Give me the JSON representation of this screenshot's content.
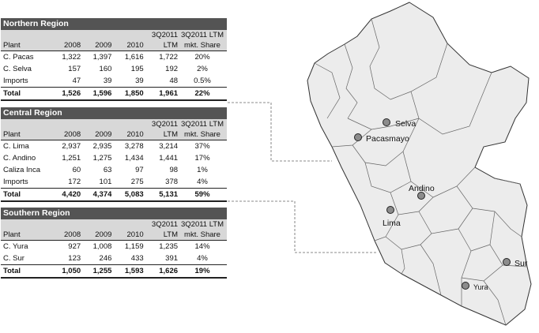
{
  "regions": [
    {
      "title": "Northern Region",
      "header_top": [
        "",
        "",
        "",
        "",
        "3Q2011",
        "3Q2011 LTM"
      ],
      "header": [
        "Plant",
        "2008",
        "2009",
        "2010",
        "LTM",
        "mkt. Share"
      ],
      "rows": [
        [
          "C. Pacas",
          "1,322",
          "1,397",
          "1,616",
          "1,722",
          "20%"
        ],
        [
          "C. Selva",
          "157",
          "160",
          "195",
          "192",
          "2%"
        ],
        [
          "Imports",
          "47",
          "39",
          "39",
          "48",
          "0.5%"
        ]
      ],
      "total": [
        "Total",
        "1,526",
        "1,596",
        "1,850",
        "1,961",
        "22%"
      ]
    },
    {
      "title": "Central Region",
      "header_top": [
        "",
        "",
        "",
        "",
        "3Q2011",
        "3Q2011 LTM"
      ],
      "header": [
        "Plant",
        "2008",
        "2009",
        "2010",
        "LTM",
        "mkt. Share"
      ],
      "rows": [
        [
          "C. Lima",
          "2,937",
          "2,935",
          "3,278",
          "3,214",
          "37%"
        ],
        [
          "C. Andino",
          "1,251",
          "1,275",
          "1,434",
          "1,441",
          "17%"
        ],
        [
          "Caliza Inca",
          "60",
          "63",
          "97",
          "98",
          "1%"
        ],
        [
          "Imports",
          "172",
          "101",
          "275",
          "378",
          "4%"
        ]
      ],
      "total": [
        "Total",
        "4,420",
        "4,374",
        "5,083",
        "5,131",
        "59%"
      ]
    },
    {
      "title": "Southern Region",
      "header_top": [
        "",
        "",
        "",
        "",
        "3Q2011",
        "3Q2011 LTM"
      ],
      "header": [
        "Plant",
        "2008",
        "2009",
        "2010",
        "LTM",
        "mkt. Share"
      ],
      "rows": [
        [
          "C. Yura",
          "927",
          "1,008",
          "1,159",
          "1,235",
          "14%"
        ],
        [
          "C. Sur",
          "123",
          "246",
          "433",
          "391",
          "4%"
        ]
      ],
      "total": [
        "Total",
        "1,050",
        "1,255",
        "1,593",
        "1,626",
        "19%"
      ]
    }
  ],
  "map": {
    "cities": [
      "Selva",
      "Pacasmayo",
      "Andino",
      "Lima",
      "Sur",
      "Yura"
    ],
    "colors": {
      "land": "#ececec",
      "border": "#333333",
      "marker": "#8c8c8c"
    }
  }
}
